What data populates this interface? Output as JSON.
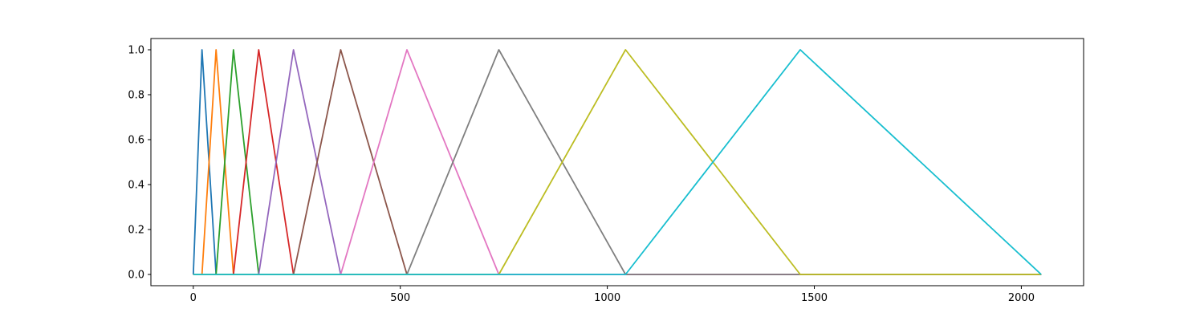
{
  "chart_data": {
    "type": "line",
    "title": "",
    "xlabel": "",
    "ylabel": "",
    "xlim": [
      -102.4,
      2150.4
    ],
    "ylim": [
      -0.05,
      1.05
    ],
    "grid": false,
    "legend": "none",
    "x_ticks": [
      {
        "value": 0,
        "label": "0"
      },
      {
        "value": 500,
        "label": "500"
      },
      {
        "value": 1000,
        "label": "1000"
      },
      {
        "value": 1500,
        "label": "1500"
      },
      {
        "value": 2000,
        "label": "2000"
      }
    ],
    "y_ticks": [
      {
        "value": 0.0,
        "label": "0.0"
      },
      {
        "value": 0.2,
        "label": "0.2"
      },
      {
        "value": 0.4,
        "label": "0.4"
      },
      {
        "value": 0.6,
        "label": "0.6"
      },
      {
        "value": 0.8,
        "label": "0.8"
      },
      {
        "value": 1.0,
        "label": "1.0"
      }
    ],
    "series": [
      {
        "color": "#1f77b4",
        "x": [
          0,
          0,
          21,
          55,
          2048
        ],
        "y": [
          0,
          0,
          1,
          0,
          0
        ]
      },
      {
        "color": "#ff7f0e",
        "x": [
          0,
          21,
          55,
          97,
          2048
        ],
        "y": [
          0,
          0,
          1,
          0,
          0
        ]
      },
      {
        "color": "#2ca02c",
        "x": [
          0,
          55,
          97,
          158,
          2048
        ],
        "y": [
          0,
          0,
          1,
          0,
          0
        ]
      },
      {
        "color": "#d62728",
        "x": [
          0,
          97,
          158,
          242,
          2048
        ],
        "y": [
          0,
          0,
          1,
          0,
          0
        ]
      },
      {
        "color": "#9467bd",
        "x": [
          0,
          158,
          242,
          356,
          2048
        ],
        "y": [
          0,
          0,
          1,
          0,
          0
        ]
      },
      {
        "color": "#8c564b",
        "x": [
          0,
          242,
          356,
          516,
          2048
        ],
        "y": [
          0,
          0,
          1,
          0,
          0
        ]
      },
      {
        "color": "#e377c2",
        "x": [
          0,
          356,
          516,
          738,
          2048
        ],
        "y": [
          0,
          0,
          1,
          0,
          0
        ]
      },
      {
        "color": "#7f7f7f",
        "x": [
          0,
          516,
          738,
          1044,
          2048
        ],
        "y": [
          0,
          0,
          1,
          0,
          0
        ]
      },
      {
        "color": "#bcbd22",
        "x": [
          0,
          738,
          1044,
          1466,
          2048
        ],
        "y": [
          0,
          0,
          1,
          0,
          0
        ]
      },
      {
        "color": "#17becf",
        "x": [
          0,
          1044,
          1466,
          2048,
          2048
        ],
        "y": [
          0,
          0,
          1,
          0,
          0
        ]
      }
    ]
  }
}
